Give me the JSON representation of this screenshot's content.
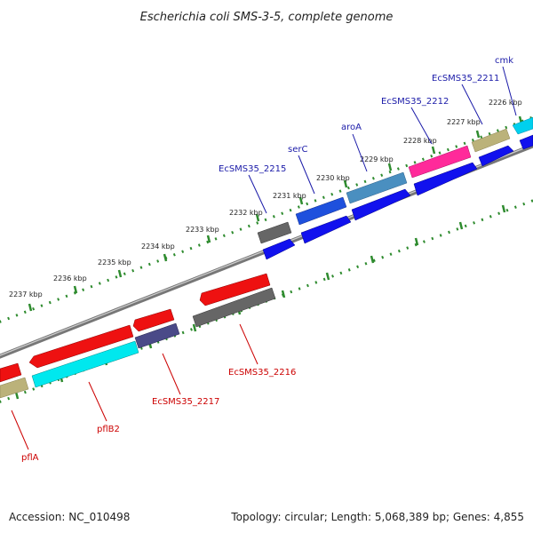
{
  "title": "Escherichia coli SMS-3-5, complete genome",
  "footer": {
    "accession": "Accession: NC_010498",
    "summary": "Topology: circular; Length: 5,068,389 bp; Genes: 4,855"
  },
  "colors": {
    "forward_label": "#1a1aa8",
    "reverse_label": "#cc0000",
    "tick": "#2e8b2e",
    "backbone": "#777777"
  },
  "kbp_ticks": [
    "2226 kbp",
    "2227 kbp",
    "2228 kbp",
    "2229 kbp",
    "2230 kbp",
    "2231 kbp",
    "2232 kbp",
    "2233 kbp",
    "2234 kbp",
    "2235 kbp",
    "2236 kbp",
    "2237 kbp"
  ],
  "forward_genes": [
    {
      "label": "cmk",
      "color": "#00d0ee",
      "strand": "+"
    },
    {
      "label": "EcSMS35_2211",
      "color": "#bbb27a",
      "strand": "+"
    },
    {
      "label": "EcSMS35_2212",
      "color": "#ff2a9a",
      "strand": "+"
    },
    {
      "label": "aroA",
      "color": "#4a8fc0",
      "strand": "+"
    },
    {
      "label": "serC",
      "color": "#1e50dd",
      "strand": "+"
    },
    {
      "label": "EcSMS35_2215",
      "color": "#666666",
      "strand": "+"
    }
  ],
  "reverse_genes": [
    {
      "label": "EcSMS35_2216",
      "color": "#ee1111",
      "strand": "-"
    },
    {
      "label": "EcSMS35_2217",
      "color": "#ee1111",
      "strand": "-"
    },
    {
      "label": "pflB2",
      "color": "#ee1111",
      "strand": "-"
    },
    {
      "label": "pflA",
      "color": "#ee1111",
      "strand": "-"
    }
  ]
}
